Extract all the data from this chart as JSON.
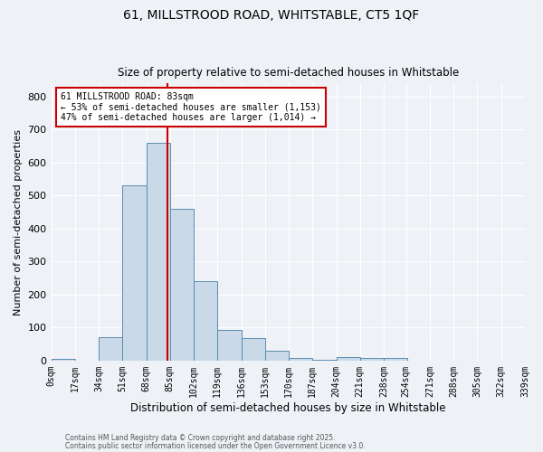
{
  "title1": "61, MILLSTROOD ROAD, WHITSTABLE, CT5 1QF",
  "title2": "Size of property relative to semi-detached houses in Whitstable",
  "xlabel": "Distribution of semi-detached houses by size in Whitstable",
  "ylabel": "Number of semi-detached properties",
  "bin_labels": [
    "0sqm",
    "17sqm",
    "34sqm",
    "51sqm",
    "68sqm",
    "85sqm",
    "102sqm",
    "119sqm",
    "136sqm",
    "153sqm",
    "170sqm",
    "187sqm",
    "204sqm",
    "221sqm",
    "238sqm",
    "254sqm",
    "271sqm",
    "288sqm",
    "305sqm",
    "322sqm",
    "339sqm"
  ],
  "bin_edges": [
    0,
    17,
    34,
    51,
    68,
    85,
    102,
    119,
    136,
    153,
    170,
    187,
    204,
    221,
    238,
    254,
    271,
    288,
    305,
    322,
    339
  ],
  "bar_heights": [
    5,
    0,
    70,
    530,
    660,
    460,
    240,
    92,
    68,
    30,
    8,
    3,
    10,
    8,
    8,
    0,
    0,
    0,
    0,
    0
  ],
  "bar_color": "#c9d9e8",
  "bar_edge_color": "#5a8db0",
  "property_size": 83,
  "vline_color": "#cc0000",
  "annotation_line1": "61 MILLSTROOD ROAD: 83sqm",
  "annotation_line2": "← 53% of semi-detached houses are smaller (1,153)",
  "annotation_line3": "47% of semi-detached houses are larger (1,014) →",
  "annotation_box_color": "#ffffff",
  "annotation_box_edge": "#cc0000",
  "ylim": [
    0,
    840
  ],
  "yticks": [
    0,
    100,
    200,
    300,
    400,
    500,
    600,
    700,
    800
  ],
  "background_color": "#eef2f7",
  "grid_color": "#ffffff",
  "footer1": "Contains HM Land Registry data © Crown copyright and database right 2025.",
  "footer2": "Contains public sector information licensed under the Open Government Licence v3.0."
}
